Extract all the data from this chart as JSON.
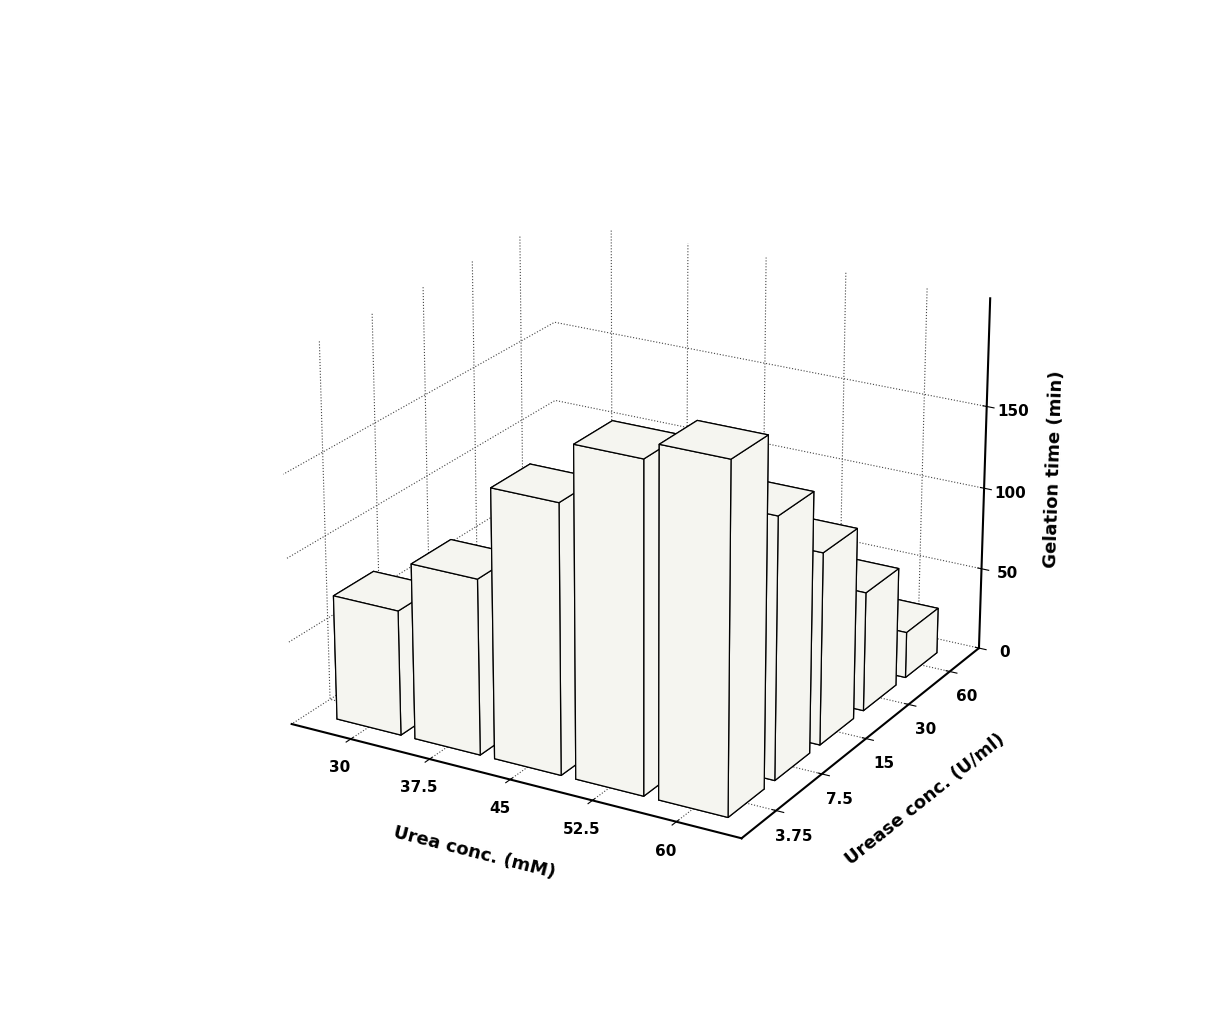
{
  "urea_conc": [
    30,
    37.5,
    45,
    52.5,
    60
  ],
  "urease_conc": [
    3.75,
    7.5,
    15,
    30,
    60
  ],
  "urea_label": "Urea conc. (mM)",
  "urease_label": "Urease conc. (U/ml)",
  "zaxis_label": "Gelation time (min)",
  "zlim": [
    0,
    215
  ],
  "zticks": [
    0,
    50,
    100,
    150
  ],
  "values": [
    [
      75,
      105,
      160,
      195,
      205
    ],
    [
      28,
      42,
      75,
      108,
      155
    ],
    [
      10,
      18,
      40,
      68,
      115
    ],
    [
      4,
      8,
      18,
      33,
      72
    ],
    [
      2,
      3,
      7,
      13,
      28
    ]
  ],
  "bar_color": "#f5f5f0",
  "bar_edge_color": "#000000",
  "bar_alpha": 1.0,
  "figsize": [
    12.32,
    10.32
  ],
  "dpi": 100,
  "elev": 22,
  "azim": -60,
  "background_color": "#ffffff"
}
